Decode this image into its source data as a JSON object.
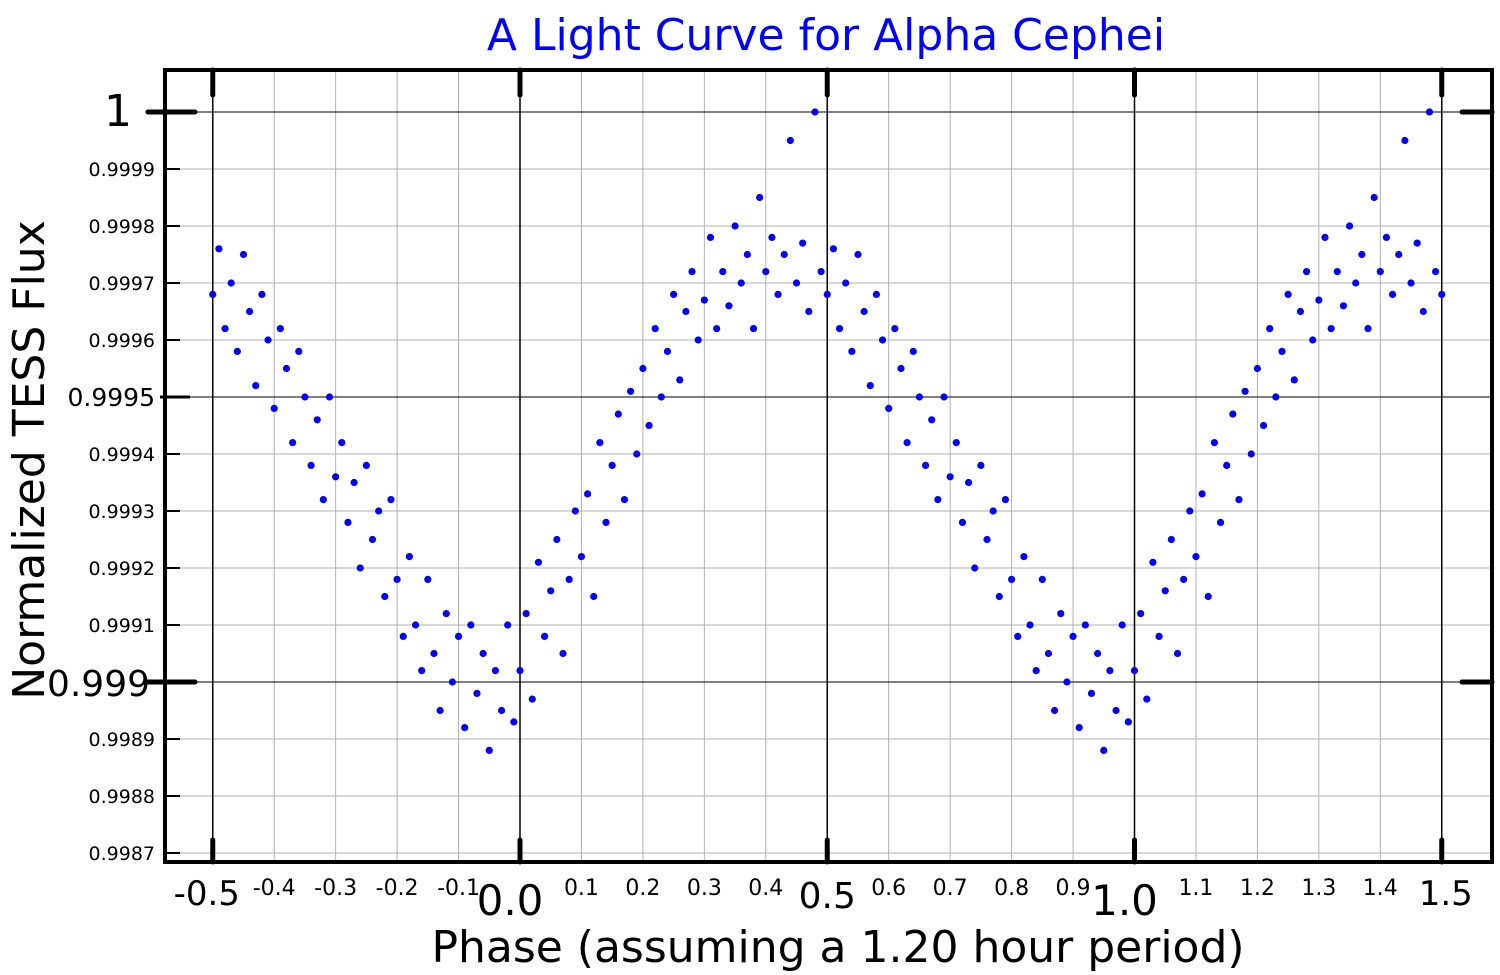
{
  "chart_data": {
    "type": "scatter",
    "title": "A Light Curve for Alpha Cephei",
    "xlabel": "Phase (assuming a 1.20 hour period)",
    "ylabel": "Normalized TESS Flux",
    "xlim": [
      -0.5,
      1.5
    ],
    "ylim": [
      0.99867,
      1.00008
    ],
    "grid": true,
    "colors": {
      "title": "#0000ff",
      "points": "#0000ff"
    },
    "x_major_ticks": [
      {
        "value": -0.5,
        "label": "-0.5"
      },
      {
        "value": 0.0,
        "label": "0.0"
      },
      {
        "value": 0.5,
        "label": "0.5"
      },
      {
        "value": 1.0,
        "label": "1.0"
      },
      {
        "value": 1.5,
        "label": "1.5"
      }
    ],
    "x_minor_ticks": [
      {
        "value": -0.4,
        "label": "-0.4"
      },
      {
        "value": -0.3,
        "label": "-0.3"
      },
      {
        "value": -0.2,
        "label": "-0.2"
      },
      {
        "value": -0.1,
        "label": "-0.1"
      },
      {
        "value": 0.1,
        "label": "0.1"
      },
      {
        "value": 0.2,
        "label": "0.2"
      },
      {
        "value": 0.3,
        "label": "0.3"
      },
      {
        "value": 0.4,
        "label": "0.4"
      },
      {
        "value": 0.6,
        "label": "0.6"
      },
      {
        "value": 0.7,
        "label": "0.7"
      },
      {
        "value": 0.8,
        "label": "0.8"
      },
      {
        "value": 0.9,
        "label": "0.9"
      },
      {
        "value": 1.1,
        "label": "1.1"
      },
      {
        "value": 1.2,
        "label": "1.2"
      },
      {
        "value": 1.3,
        "label": "1.3"
      },
      {
        "value": 1.4,
        "label": "1.4"
      }
    ],
    "y_major_ticks": [
      {
        "value": 1.0,
        "label": "1"
      },
      {
        "value": 0.999,
        "label": "0.999"
      }
    ],
    "y_mid_ticks": [
      {
        "value": 0.9995,
        "label": "0.9995"
      }
    ],
    "y_minor_ticks": [
      {
        "value": 0.9999,
        "label": "0.9999"
      },
      {
        "value": 0.9998,
        "label": "0.9998"
      },
      {
        "value": 0.9997,
        "label": "0.9997"
      },
      {
        "value": 0.9996,
        "label": "0.9996"
      },
      {
        "value": 0.9994,
        "label": "0.9994"
      },
      {
        "value": 0.9993,
        "label": "0.9993"
      },
      {
        "value": 0.9992,
        "label": "0.9992"
      },
      {
        "value": 0.9991,
        "label": "0.9991"
      },
      {
        "value": 0.9989,
        "label": "0.9989"
      },
      {
        "value": 0.9988,
        "label": "0.9988"
      },
      {
        "value": 0.9987,
        "label": "0.9987"
      }
    ],
    "phase_repeats": [
      -1,
      0,
      1
    ],
    "points": [
      [
        0.0,
        0.99902
      ],
      [
        0.01,
        0.99912
      ],
      [
        0.02,
        0.99897
      ],
      [
        0.03,
        0.99921
      ],
      [
        0.04,
        0.99908
      ],
      [
        0.05,
        0.99916
      ],
      [
        0.06,
        0.99925
      ],
      [
        0.07,
        0.99905
      ],
      [
        0.08,
        0.99918
      ],
      [
        0.09,
        0.9993
      ],
      [
        0.1,
        0.99922
      ],
      [
        0.11,
        0.99933
      ],
      [
        0.12,
        0.99915
      ],
      [
        0.13,
        0.99942
      ],
      [
        0.14,
        0.99928
      ],
      [
        0.15,
        0.99938
      ],
      [
        0.16,
        0.99947
      ],
      [
        0.17,
        0.99932
      ],
      [
        0.18,
        0.99951
      ],
      [
        0.19,
        0.9994
      ],
      [
        0.2,
        0.99955
      ],
      [
        0.21,
        0.99945
      ],
      [
        0.22,
        0.99962
      ],
      [
        0.23,
        0.9995
      ],
      [
        0.24,
        0.99958
      ],
      [
        0.25,
        0.99968
      ],
      [
        0.26,
        0.99953
      ],
      [
        0.27,
        0.99965
      ],
      [
        0.28,
        0.99972
      ],
      [
        0.29,
        0.9996
      ],
      [
        0.3,
        0.99967
      ],
      [
        0.31,
        0.99978
      ],
      [
        0.32,
        0.99962
      ],
      [
        0.33,
        0.99972
      ],
      [
        0.34,
        0.99966
      ],
      [
        0.35,
        0.9998
      ],
      [
        0.36,
        0.9997
      ],
      [
        0.37,
        0.99975
      ],
      [
        0.38,
        0.99962
      ],
      [
        0.39,
        0.99985
      ],
      [
        0.4,
        0.99972
      ],
      [
        0.41,
        0.99978
      ],
      [
        0.42,
        0.99968
      ],
      [
        0.43,
        0.99975
      ],
      [
        0.44,
        0.99995
      ],
      [
        0.45,
        0.9997
      ],
      [
        0.46,
        0.99977
      ],
      [
        0.47,
        0.99965
      ],
      [
        0.48,
        1.0
      ],
      [
        0.49,
        0.99972
      ],
      [
        0.5,
        0.99968
      ],
      [
        0.51,
        0.99976
      ],
      [
        0.52,
        0.99962
      ],
      [
        0.53,
        0.9997
      ],
      [
        0.54,
        0.99958
      ],
      [
        0.55,
        0.99975
      ],
      [
        0.56,
        0.99965
      ],
      [
        0.57,
        0.99952
      ],
      [
        0.58,
        0.99968
      ],
      [
        0.59,
        0.9996
      ],
      [
        0.6,
        0.99948
      ],
      [
        0.61,
        0.99962
      ],
      [
        0.62,
        0.99955
      ],
      [
        0.63,
        0.99942
      ],
      [
        0.64,
        0.99958
      ],
      [
        0.65,
        0.9995
      ],
      [
        0.66,
        0.99938
      ],
      [
        0.67,
        0.99946
      ],
      [
        0.68,
        0.99932
      ],
      [
        0.69,
        0.9995
      ],
      [
        0.7,
        0.99936
      ],
      [
        0.71,
        0.99942
      ],
      [
        0.72,
        0.99928
      ],
      [
        0.73,
        0.99935
      ],
      [
        0.74,
        0.9992
      ],
      [
        0.75,
        0.99938
      ],
      [
        0.76,
        0.99925
      ],
      [
        0.77,
        0.9993
      ],
      [
        0.78,
        0.99915
      ],
      [
        0.79,
        0.99932
      ],
      [
        0.8,
        0.99918
      ],
      [
        0.81,
        0.99908
      ],
      [
        0.82,
        0.99922
      ],
      [
        0.83,
        0.9991
      ],
      [
        0.84,
        0.99902
      ],
      [
        0.85,
        0.99918
      ],
      [
        0.86,
        0.99905
      ],
      [
        0.87,
        0.99895
      ],
      [
        0.88,
        0.99912
      ],
      [
        0.89,
        0.999
      ],
      [
        0.9,
        0.99908
      ],
      [
        0.91,
        0.99892
      ],
      [
        0.92,
        0.9991
      ],
      [
        0.93,
        0.99898
      ],
      [
        0.94,
        0.99905
      ],
      [
        0.95,
        0.99888
      ],
      [
        0.96,
        0.99902
      ],
      [
        0.97,
        0.99895
      ],
      [
        0.98,
        0.9991
      ],
      [
        0.99,
        0.99893
      ]
    ]
  }
}
